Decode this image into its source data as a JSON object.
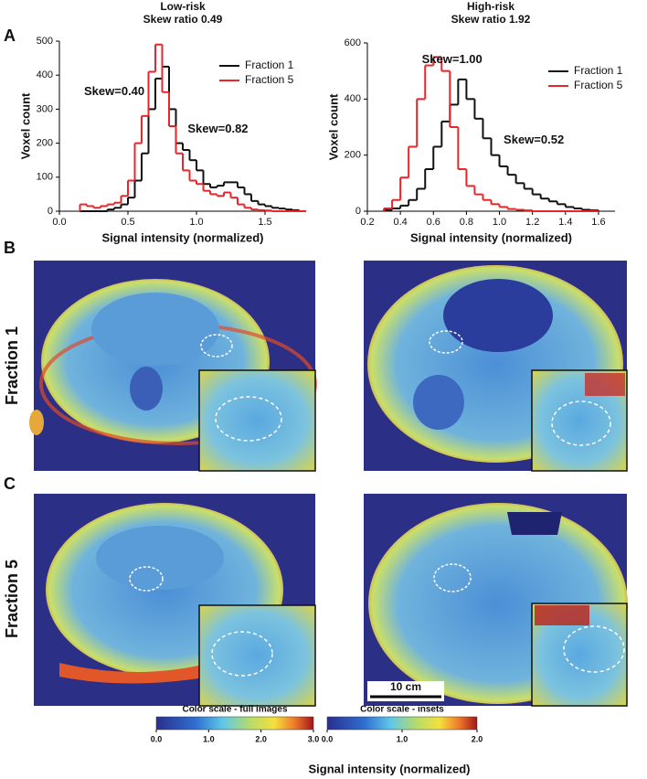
{
  "chart_data": [
    {
      "type": "step",
      "title": "Low-risk",
      "subtitle": "Skew ratio 0.49",
      "x_label": "Signal intensity (normalized)",
      "y_label": "Voxel count",
      "x": [
        0.15,
        0.2,
        0.25,
        0.3,
        0.35,
        0.4,
        0.45,
        0.5,
        0.55,
        0.6,
        0.65,
        0.7,
        0.75,
        0.8,
        0.85,
        0.9,
        0.95,
        1.0,
        1.05,
        1.1,
        1.15,
        1.2,
        1.25,
        1.3,
        1.35,
        1.4,
        1.45,
        1.5,
        1.55,
        1.6,
        1.65,
        1.7,
        1.75
      ],
      "series": [
        {
          "name": "Fraction 1",
          "color": "#111111",
          "values": [
            0,
            0,
            0,
            0,
            5,
            10,
            20,
            40,
            90,
            170,
            300,
            390,
            425,
            300,
            200,
            180,
            150,
            120,
            80,
            70,
            75,
            85,
            85,
            70,
            50,
            30,
            20,
            15,
            10,
            8,
            5,
            3,
            0
          ]
        },
        {
          "name": "Fraction 5",
          "color": "#e8262a",
          "values": [
            20,
            15,
            10,
            15,
            20,
            25,
            45,
            90,
            200,
            280,
            410,
            490,
            350,
            250,
            170,
            120,
            90,
            80,
            60,
            50,
            45,
            55,
            40,
            20,
            10,
            5,
            3,
            2,
            0,
            0,
            0,
            0,
            0
          ]
        }
      ],
      "annotations": [
        {
          "text": "Skew=0.40",
          "color": "#e8262a"
        },
        {
          "text": "Skew=0.82",
          "color": "#111111"
        }
      ],
      "xlim": [
        0,
        1.8
      ],
      "xticks": [
        {
          "value": 0,
          "label": "0.0"
        },
        0.5,
        {
          "value": 1,
          "label": "1.0"
        },
        1.5
      ],
      "ylim": [
        0,
        500
      ],
      "yticks": [
        0,
        100,
        200,
        300,
        400,
        500
      ],
      "legend": "upper right"
    },
    {
      "type": "step",
      "title": "High-risk",
      "subtitle": "Skew ratio 1.92",
      "x_label": "Signal intensity (normalized)",
      "y_label": "Voxel count",
      "x": [
        0.3,
        0.35,
        0.4,
        0.45,
        0.5,
        0.55,
        0.6,
        0.65,
        0.7,
        0.75,
        0.8,
        0.85,
        0.9,
        0.95,
        1.0,
        1.05,
        1.1,
        1.15,
        1.2,
        1.25,
        1.3,
        1.35,
        1.4,
        1.45,
        1.5,
        1.55
      ],
      "series": [
        {
          "name": "Fraction 1",
          "color": "#111111",
          "values": [
            5,
            10,
            20,
            40,
            80,
            150,
            230,
            320,
            380,
            470,
            400,
            330,
            260,
            200,
            160,
            130,
            100,
            80,
            60,
            45,
            35,
            25,
            15,
            10,
            5,
            3
          ]
        },
        {
          "name": "Fraction 5",
          "color": "#e8262a",
          "values": [
            10,
            40,
            120,
            230,
            400,
            520,
            550,
            500,
            300,
            150,
            90,
            60,
            40,
            25,
            15,
            8,
            5,
            3,
            0,
            0,
            0,
            0,
            0,
            0,
            0,
            0
          ]
        }
      ],
      "annotations": [
        {
          "text": "Skew=1.00",
          "color": "#e8262a"
        },
        {
          "text": "Skew=0.52",
          "color": "#111111"
        }
      ],
      "xlim": [
        0.2,
        1.7
      ],
      "xticks": [
        0.2,
        0.4,
        0.6,
        0.8,
        {
          "value": 1,
          "label": "1.0"
        },
        1.2,
        1.4,
        1.6
      ],
      "ylim": [
        0,
        600
      ],
      "yticks": [
        0,
        200,
        400,
        600
      ],
      "legend": "upper right"
    }
  ],
  "panels": [
    "A",
    "B",
    "C"
  ],
  "row_labels": [
    "Fraction 1",
    "Fraction 5"
  ],
  "scale_bar": "10 cm",
  "colorbars": [
    {
      "title": "Color scale - full images",
      "lim": [
        0,
        3
      ],
      "ticks": [
        {
          "value": 0,
          "label": "0.0"
        },
        {
          "value": 1,
          "label": "1.0"
        },
        {
          "value": 2,
          "label": "2.0"
        },
        {
          "value": 3,
          "label": "3.0"
        }
      ]
    },
    {
      "title": "Color scale - insets",
      "lim": [
        0,
        2
      ],
      "ticks": [
        {
          "value": 0,
          "label": "0.0"
        },
        {
          "value": 1,
          "label": "1.0"
        },
        {
          "value": 2,
          "label": "2.0"
        }
      ]
    }
  ],
  "colorbar_label": "Signal intensity (normalized)"
}
